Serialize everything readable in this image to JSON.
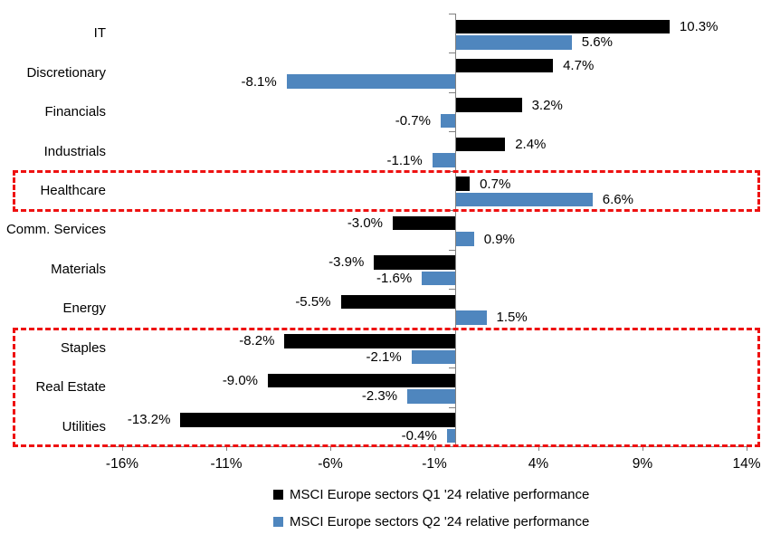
{
  "chart_data": {
    "type": "bar",
    "orientation": "horizontal",
    "title": "",
    "categories": [
      "IT",
      "Discretionary",
      "Financials",
      "Industrials",
      "Healthcare",
      "Comm. Services",
      "Materials",
      "Energy",
      "Staples",
      "Real Estate",
      "Utilities"
    ],
    "series": [
      {
        "name": "MSCI Europe sectors Q1 '24 relative performance",
        "color": "#000000",
        "values": [
          10.3,
          4.7,
          3.2,
          2.4,
          0.7,
          -3.0,
          -3.9,
          -5.5,
          -8.2,
          -9.0,
          -13.2
        ]
      },
      {
        "name": "MSCI Europe sectors Q2 '24 relative performance",
        "color": "#4F86BE",
        "values": [
          5.6,
          -8.1,
          -0.7,
          -1.1,
          6.6,
          0.9,
          -1.6,
          1.5,
          -2.1,
          -2.3,
          -0.4
        ]
      }
    ],
    "value_labels": true,
    "value_label_format": "one-decimal-percent",
    "x_ticks": [
      {
        "label": "-16%",
        "value": -16
      },
      {
        "label": "-11%",
        "value": -11
      },
      {
        "label": "-6%",
        "value": -6
      },
      {
        "label": "-1%",
        "value": -1
      },
      {
        "label": "4%",
        "value": 4
      },
      {
        "label": "9%",
        "value": 9
      },
      {
        "label": "14%",
        "value": 14
      }
    ],
    "xlim": [
      -16.8,
      14.3
    ],
    "grid": false,
    "legend_position": "bottom",
    "axis_color": "#808080",
    "highlight_color": "#EE1111",
    "highlight_boxes": [
      {
        "categories": [
          "Healthcare"
        ]
      },
      {
        "categories": [
          "Staples",
          "Real Estate",
          "Utilities"
        ]
      }
    ]
  }
}
